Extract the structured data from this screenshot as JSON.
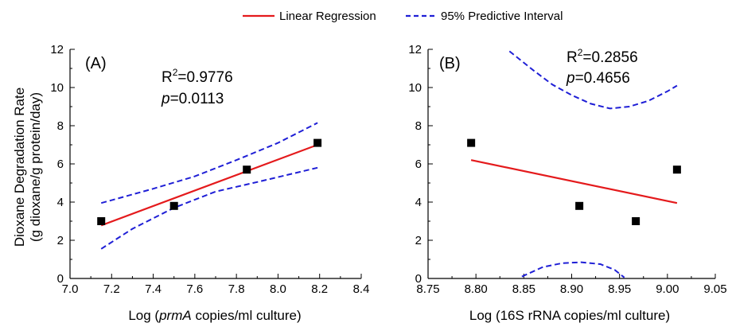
{
  "legend": {
    "regression_label": "Linear Regression",
    "interval_label": "95% Predictive Interval",
    "regression_color": "#e41a1c",
    "interval_color": "#1f1fd6"
  },
  "y_axis_title_line1": "Dioxane Degradation Rate",
  "y_axis_title_line2": "(g dioxane/g protein/day)",
  "chart_data": [
    {
      "type": "scatter",
      "panel_label": "(A)",
      "xlabel_prefix": "Log (",
      "xlabel_italic": "prmA",
      "xlabel_suffix": " copies/ml culture)",
      "ylabel": "Dioxane Degradation Rate (g dioxane/g protein/day)",
      "xlim": [
        7.0,
        8.4
      ],
      "ylim": [
        0,
        12
      ],
      "xticks": [
        "7.0",
        "7.2",
        "7.4",
        "7.6",
        "7.8",
        "8.0",
        "8.2",
        "8.4"
      ],
      "yticks": [
        "0",
        "2",
        "4",
        "6",
        "8",
        "10",
        "12"
      ],
      "points": {
        "x": [
          7.15,
          7.5,
          7.85,
          8.19
        ],
        "y": [
          3.0,
          3.8,
          5.7,
          7.1
        ]
      },
      "regression": {
        "x": [
          7.15,
          8.19
        ],
        "y": [
          2.78,
          7.0
        ]
      },
      "interval_upper": {
        "x": [
          7.15,
          7.4,
          7.6,
          7.8,
          8.0,
          8.19
        ],
        "y": [
          3.95,
          4.7,
          5.35,
          6.2,
          7.1,
          8.15
        ]
      },
      "interval_lower": {
        "x": [
          7.15,
          7.3,
          7.5,
          7.7,
          7.9,
          8.19
        ],
        "y": [
          1.55,
          2.6,
          3.7,
          4.55,
          5.05,
          5.8
        ]
      },
      "r2_label": "R",
      "r2_sup": "2",
      "r2_value": "=0.9776",
      "p_label": "p",
      "p_value": "=0.0113"
    },
    {
      "type": "scatter",
      "panel_label": "(B)",
      "xlabel": "Log (16S rRNA copies/ml culture)",
      "ylabel": "Dioxane Degradation Rate (g dioxane/g protein/day)",
      "xlim": [
        8.75,
        9.05
      ],
      "ylim": [
        0,
        12
      ],
      "xticks": [
        "8.75",
        "8.80",
        "8.85",
        "8.90",
        "8.95",
        "9.00",
        "9.05"
      ],
      "yticks": [
        "0",
        "2",
        "4",
        "6",
        "8",
        "10",
        "12"
      ],
      "points": {
        "x": [
          8.795,
          8.908,
          8.967,
          9.01
        ],
        "y": [
          7.1,
          3.8,
          3.0,
          5.7
        ]
      },
      "regression": {
        "x": [
          8.795,
          9.01
        ],
        "y": [
          6.2,
          3.95
        ]
      },
      "interval_upper": {
        "x": [
          8.835,
          8.86,
          8.88,
          8.9,
          8.92,
          8.94,
          8.96,
          8.98,
          9.0,
          9.01
        ],
        "y": [
          11.9,
          10.9,
          10.15,
          9.6,
          9.15,
          8.9,
          9.0,
          9.3,
          9.8,
          10.1
        ]
      },
      "interval_lower": {
        "x": [
          8.848,
          8.87,
          8.89,
          8.91,
          8.93,
          8.945,
          8.955
        ],
        "y": [
          0.1,
          0.6,
          0.8,
          0.85,
          0.75,
          0.45,
          0.05
        ]
      },
      "r2_label": "R",
      "r2_sup": "2",
      "r2_value": "=0.2856",
      "p_label": "p",
      "p_value": "=0.4656"
    }
  ]
}
